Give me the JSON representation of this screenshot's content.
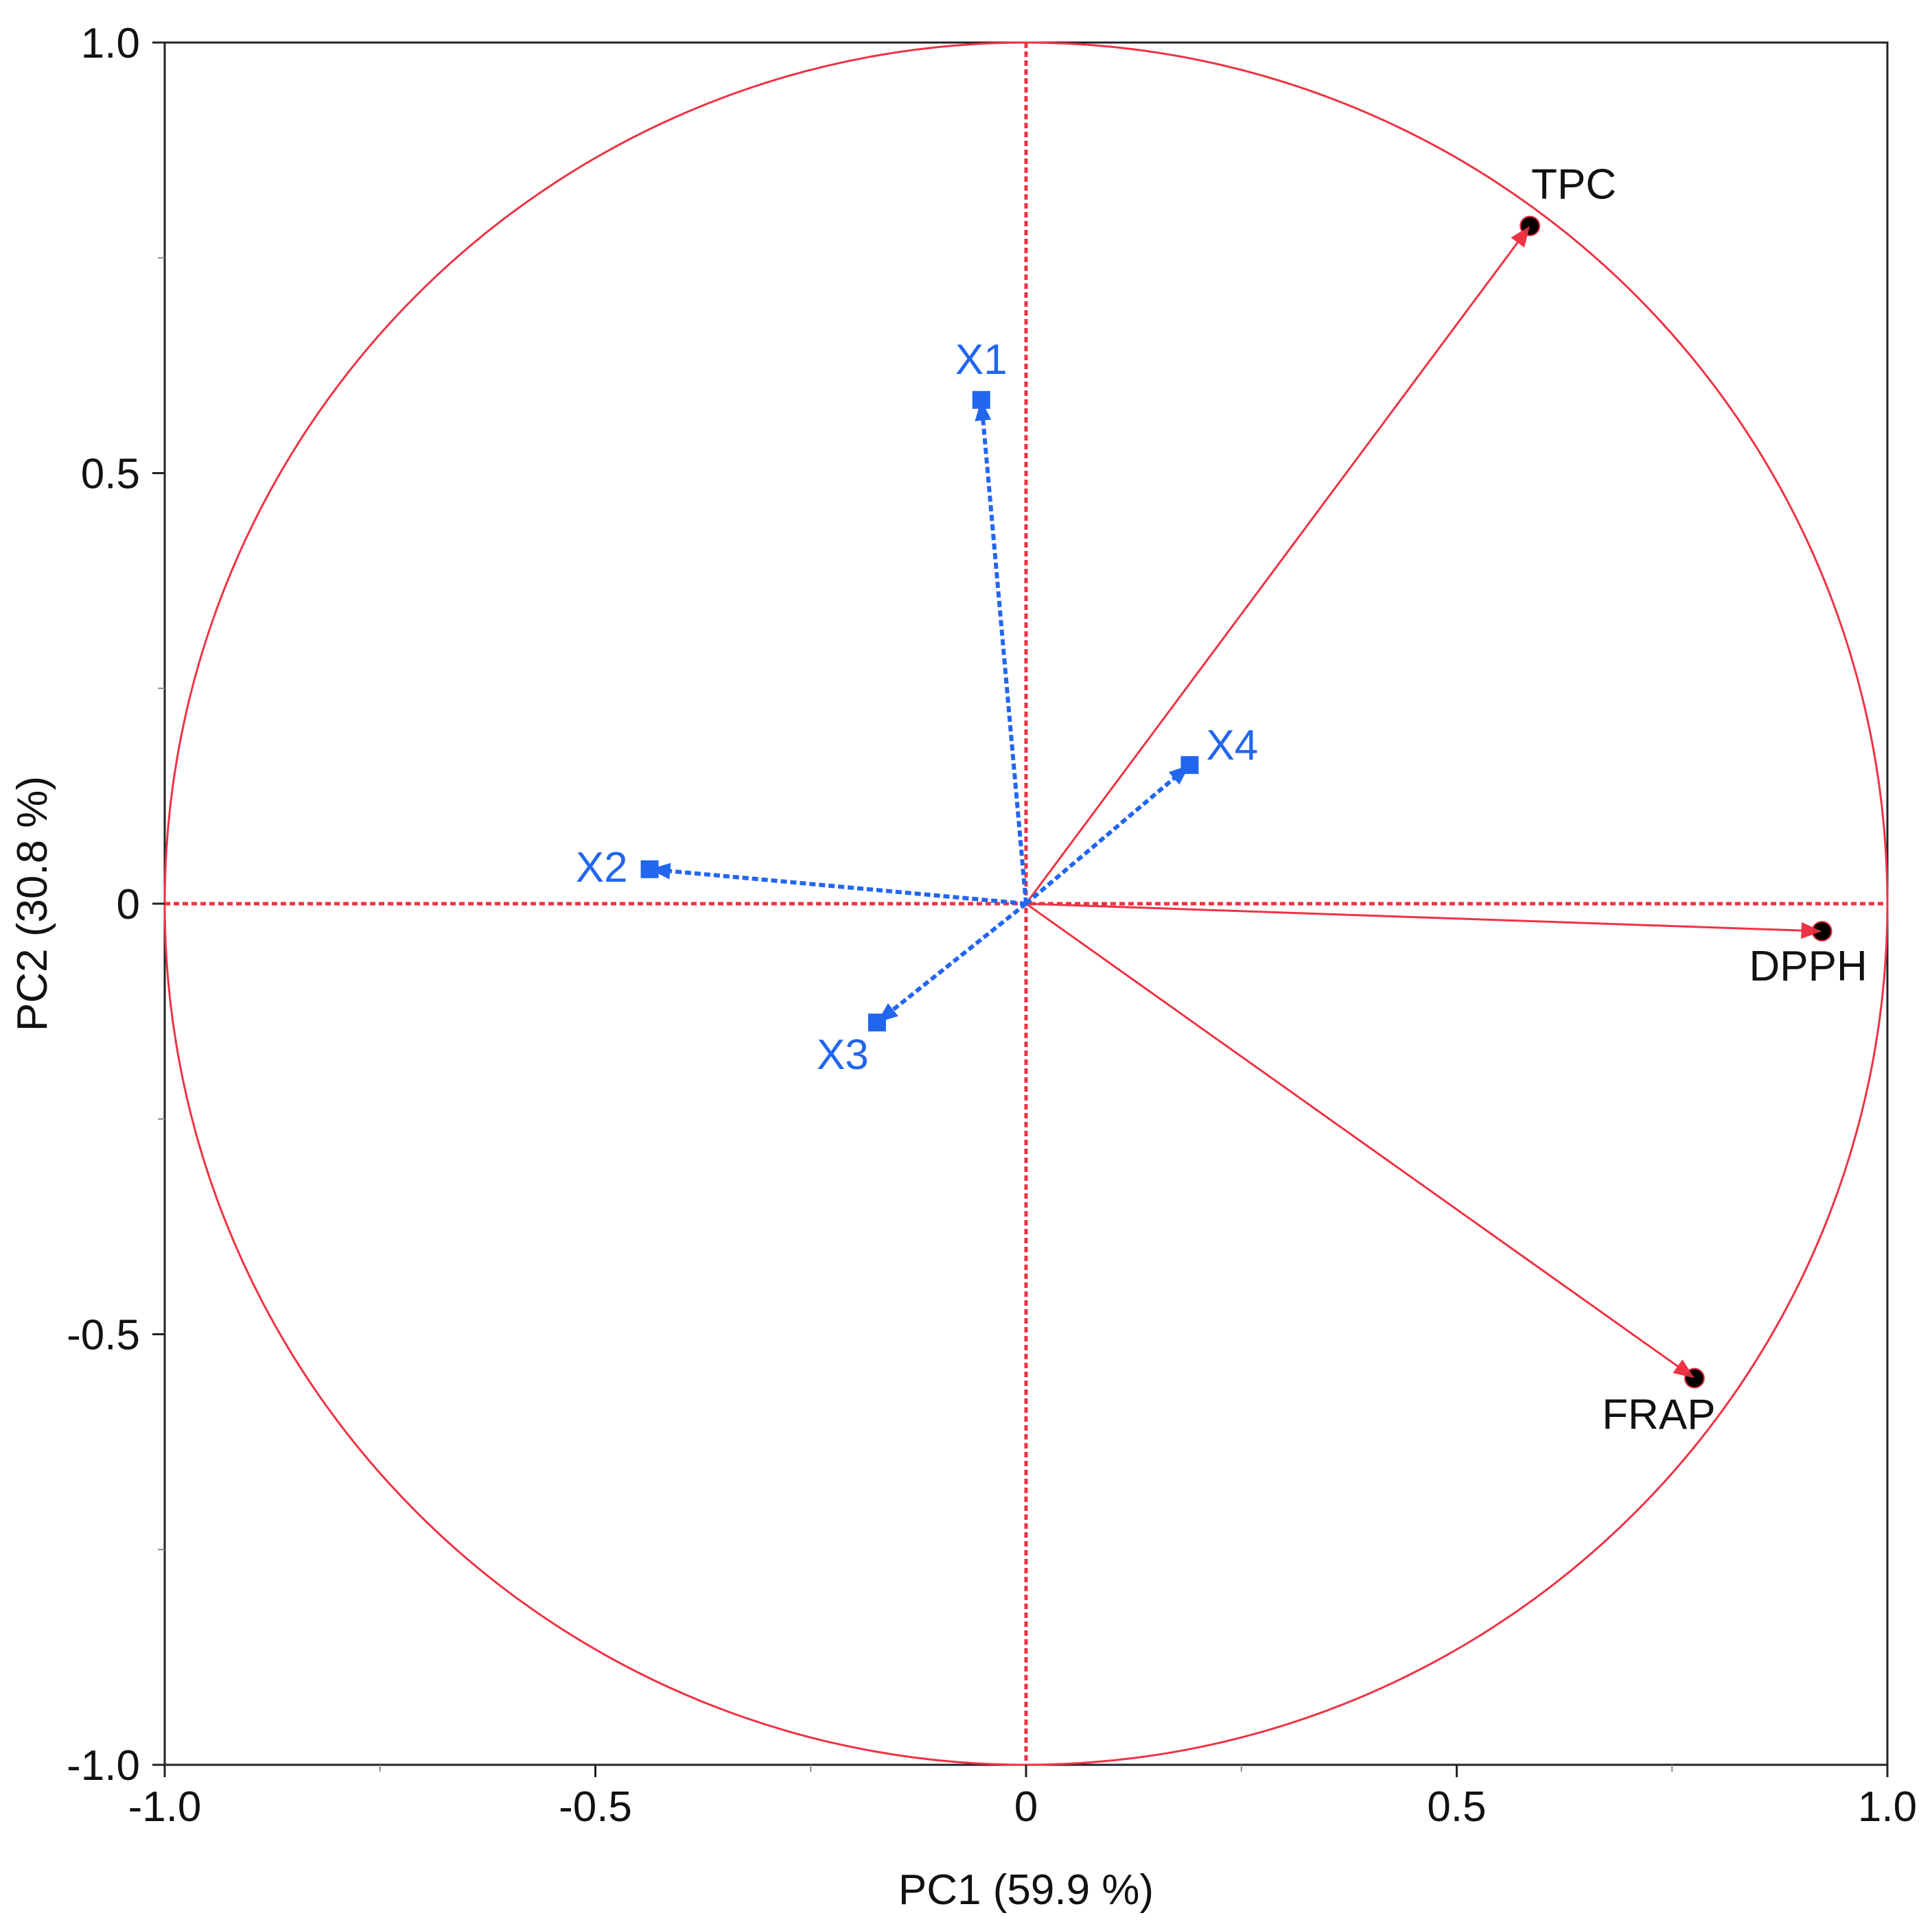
{
  "chart_data": {
    "type": "scatter",
    "title": "",
    "xlabel": "PC1  (59.9 %)",
    "ylabel": "PC2  (30.8 %)",
    "xlim": [
      -1.0,
      1.0
    ],
    "ylim": [
      -1.0,
      1.0
    ],
    "x_ticks": [
      {
        "value": -1.0,
        "label": "-1.0"
      },
      {
        "value": -0.5,
        "label": "-0.5"
      },
      {
        "value": 0.0,
        "label": "0"
      },
      {
        "value": 0.5,
        "label": "0.5"
      },
      {
        "value": 1.0,
        "label": "1.0"
      }
    ],
    "y_ticks": [
      {
        "value": 1.0,
        "label": "1.0"
      },
      {
        "value": 0.5,
        "label": "0.5"
      },
      {
        "value": 0.0,
        "label": "0"
      },
      {
        "value": -0.5,
        "label": "-0.5"
      },
      {
        "value": -1.0,
        "label": "-1.0"
      }
    ],
    "minor_ticks": [
      -0.75,
      -0.25,
      0.25,
      0.75
    ],
    "grid": false,
    "unit_circle": true,
    "series": [
      {
        "color": "#ee3344",
        "style": "solid",
        "marker": "circle",
        "points": [
          {
            "label": "TPC",
            "x": 0.585,
            "y": 0.787
          },
          {
            "label": "DPPH",
            "x": 0.924,
            "y": -0.032
          },
          {
            "label": "FRAP",
            "x": 0.776,
            "y": -0.551
          }
        ]
      },
      {
        "color": "#2266ee",
        "style": "dashed",
        "marker": "square",
        "points": [
          {
            "label": "X1",
            "x": -0.052,
            "y": 0.585
          },
          {
            "label": "X2",
            "x": -0.437,
            "y": 0.04
          },
          {
            "label": "X3",
            "x": -0.173,
            "y": -0.138
          },
          {
            "label": "X4",
            "x": 0.19,
            "y": 0.161
          }
        ]
      }
    ]
  }
}
